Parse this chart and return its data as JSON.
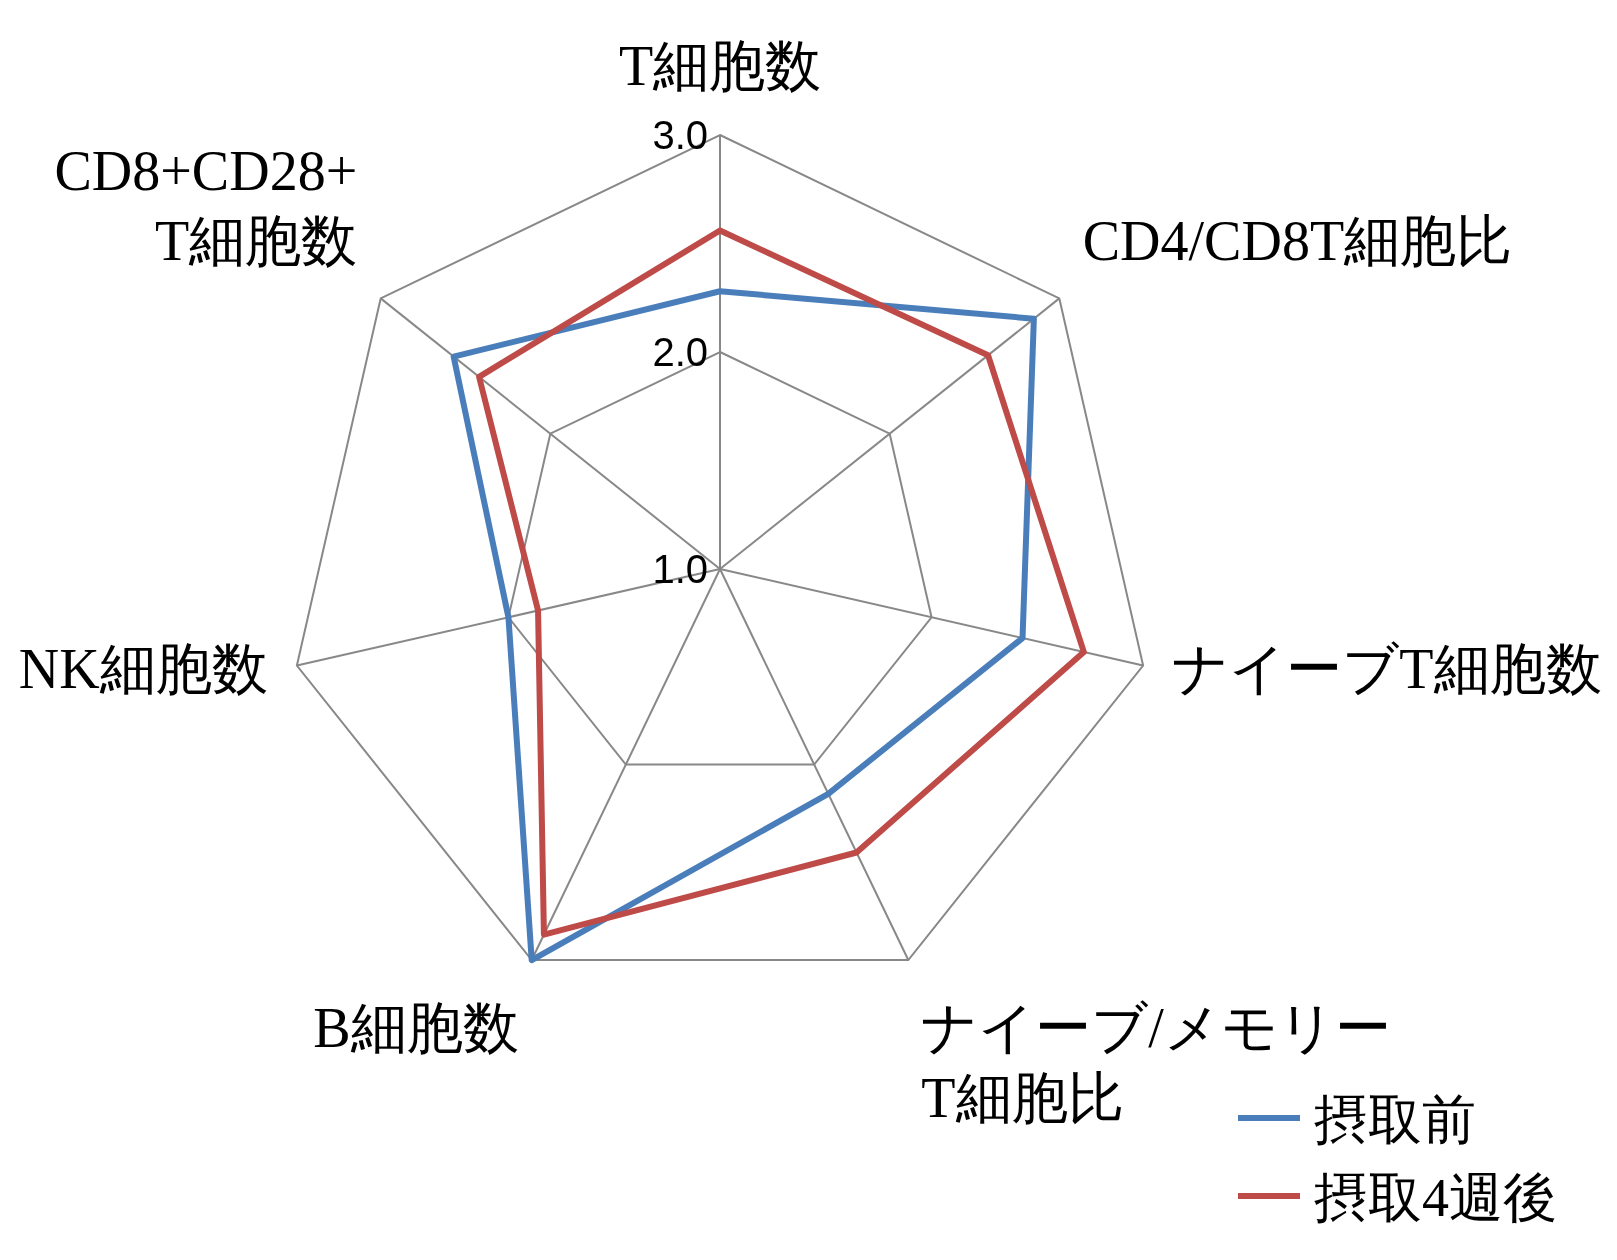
{
  "chart_data": {
    "type": "radar",
    "categories": [
      "T細胞数",
      "CD4/CD8T細胞比",
      "ナイーブT細胞数",
      "ナイーブ/メモリー\nT細胞比",
      "B細胞数",
      "NK細胞数",
      "CD8+CD28+\nT細胞数"
    ],
    "series": [
      {
        "name": "摂取前",
        "color": "#4a7ebb",
        "values": [
          2.28,
          2.85,
          2.43,
          2.15,
          3.0,
          2.0,
          2.57
        ]
      },
      {
        "name": "摂取4週後",
        "color": "#be4b48",
        "values": [
          2.56,
          2.58,
          2.72,
          2.45,
          2.87,
          1.86,
          2.42
        ]
      }
    ],
    "ylim": [
      1,
      3
    ],
    "yticks": [
      {
        "value": 1,
        "label": "1.0"
      },
      {
        "value": 2,
        "label": "2.0"
      },
      {
        "value": 3,
        "label": "3.0"
      }
    ],
    "grid": true,
    "legend": "bottom right"
  }
}
